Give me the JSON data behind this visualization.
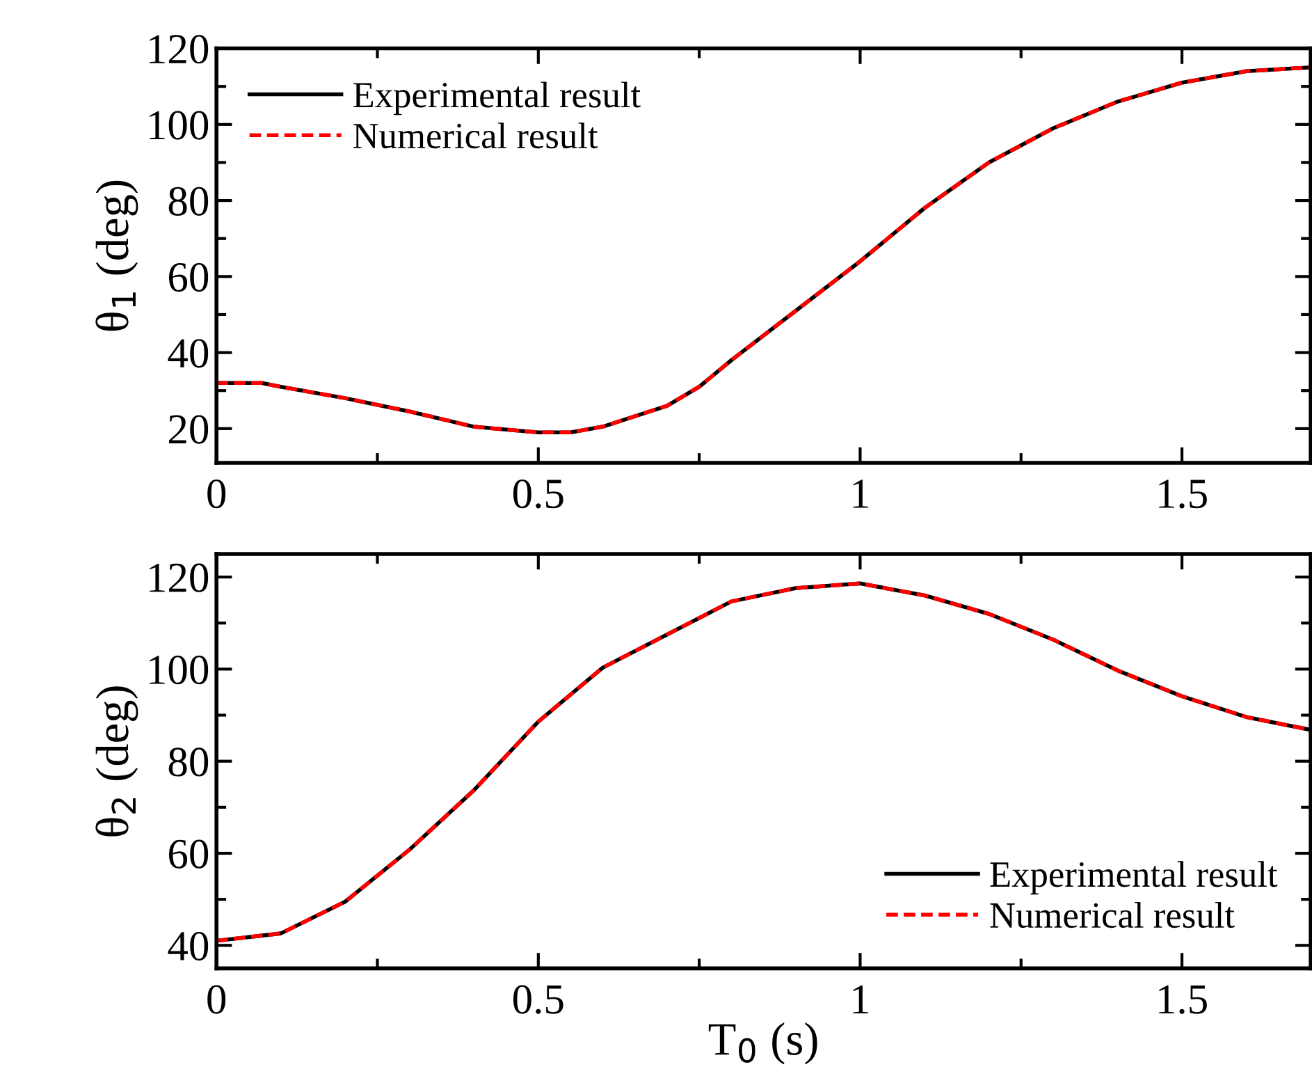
{
  "chart_data": [
    {
      "type": "line",
      "ylabel": "θ$_{1}$ (deg)",
      "x": [
        0,
        0.07,
        0.1,
        0.2,
        0.3,
        0.4,
        0.5,
        0.55,
        0.6,
        0.7,
        0.75,
        0.8,
        0.9,
        1.0,
        1.1,
        1.2,
        1.3,
        1.4,
        1.5,
        1.6,
        1.7
      ],
      "xlim": [
        0,
        1.7
      ],
      "xticks": [
        0,
        0.5,
        1,
        1.5
      ],
      "ylim": [
        11,
        120
      ],
      "yticks": [
        20,
        40,
        60,
        80,
        100,
        120
      ],
      "legend": "top left",
      "grid": false,
      "series": [
        {
          "name": "Experimental result",
          "color": "#000000",
          "line_style": "solid",
          "values": [
            32,
            32,
            31,
            28,
            24.5,
            20.5,
            19,
            19,
            20.5,
            26,
            31,
            38,
            51,
            64,
            78,
            90,
            99,
            106,
            111,
            114,
            115
          ]
        },
        {
          "name": "Numerical result",
          "color": "#ff0000",
          "line_style": "dashed",
          "values": [
            32,
            32,
            31,
            28,
            24.5,
            20.5,
            19,
            19,
            20.5,
            26,
            31,
            38,
            51,
            64,
            78,
            90,
            99,
            106,
            111,
            114,
            115
          ]
        }
      ]
    },
    {
      "type": "line",
      "ylabel": "θ$_{2}$ (deg)",
      "xlabel": "T$_{0}$ (s)",
      "x": [
        0,
        0.1,
        0.2,
        0.3,
        0.4,
        0.5,
        0.6,
        0.7,
        0.8,
        0.9,
        1.0,
        1.1,
        1.2,
        1.3,
        1.4,
        1.5,
        1.6,
        1.7
      ],
      "xlim": [
        0,
        1.7
      ],
      "xticks": [
        0,
        0.5,
        1,
        1.5
      ],
      "ylim": [
        35,
        125
      ],
      "yticks": [
        40,
        60,
        80,
        100,
        120
      ],
      "legend": "bottom right",
      "grid": false,
      "series": [
        {
          "name": "Experimental result",
          "color": "#000000",
          "line_style": "solid",
          "values": [
            41,
            42.6,
            49.5,
            60.8,
            73.7,
            88.6,
            100.3,
            107.5,
            114.7,
            117.6,
            118.6,
            116,
            112,
            106.4,
            99.7,
            94.1,
            89.6,
            86.8
          ]
        },
        {
          "name": "Numerical result",
          "color": "#ff0000",
          "line_style": "dashed",
          "values": [
            41,
            42.6,
            49.5,
            60.8,
            73.7,
            88.6,
            100.3,
            107.5,
            114.7,
            117.6,
            118.6,
            116,
            112,
            106.4,
            99.7,
            94.1,
            89.6,
            86.8
          ]
        }
      ]
    }
  ]
}
